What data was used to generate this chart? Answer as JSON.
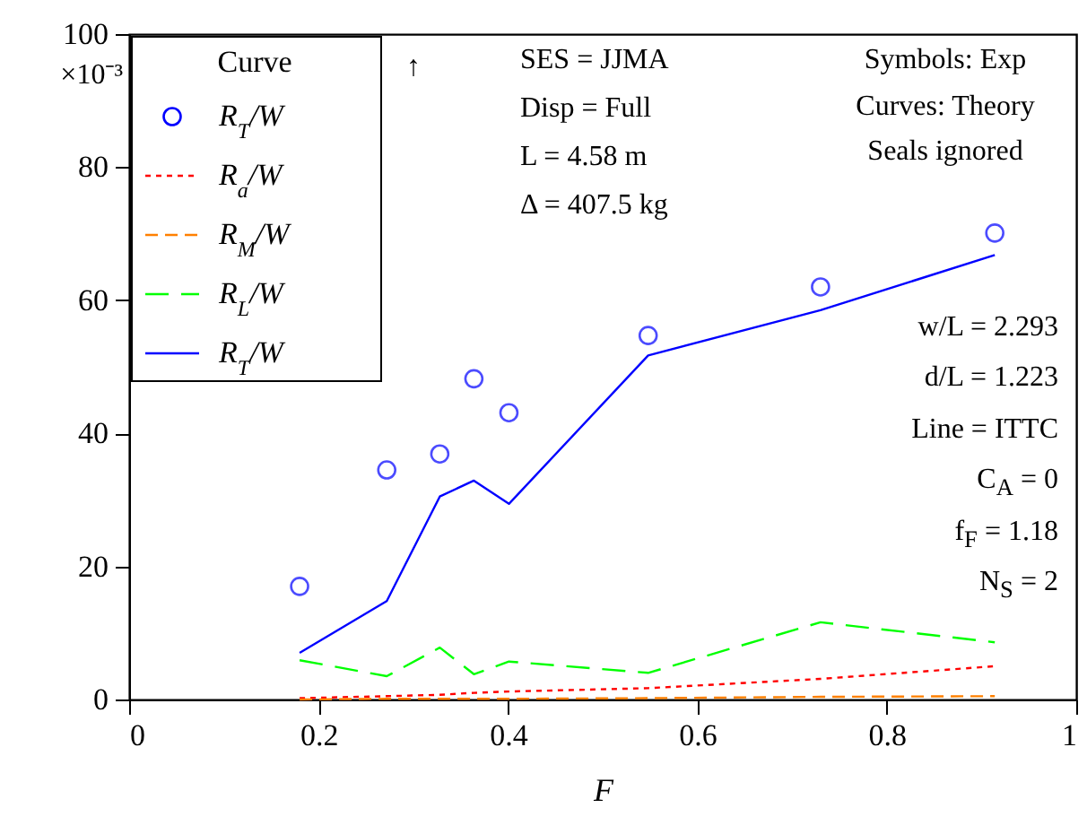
{
  "chart_data": {
    "type": "line",
    "xlabel": "F",
    "ylabel": "×10⁻³",
    "legend_title": "Curve",
    "legend": "top left",
    "annotations": [
      "↑",
      "SES = JJMA",
      "Disp = Full",
      "L = 4.58 m",
      "Δ = 407.5 kg",
      "Symbols: Exp",
      "Curves: Theory",
      "Seals ignored",
      "w/L = 2.293",
      "d/L = 1.223",
      "Line = ITTC",
      "C$_{A}$ = 0",
      "f$_{F}$ = 1.18",
      "N$_{S}$ = 2"
    ],
    "x": [
      0.18,
      0.272,
      0.328,
      0.364,
      0.401,
      0.548,
      0.73,
      0.914
    ],
    "series": [
      {
        "name": "R$_{T}$/W",
        "type": "scatter",
        "marker": "circle",
        "color": "#0000ff",
        "values": [
          17.0,
          34.5,
          36.9,
          48.2,
          43.1,
          54.7,
          62.0,
          70.1
        ]
      },
      {
        "name": "R$_{a}$/W",
        "line_style": "dashed",
        "color": "#ff0000",
        "values": [
          0.2,
          0.5,
          0.7,
          1.0,
          1.2,
          1.7,
          3.1,
          5.0
        ]
      },
      {
        "name": "R$_{M}$/W",
        "line_style": "dashed",
        "color": "#ff8000",
        "values": [
          0.0,
          0.1,
          0.1,
          0.1,
          0.1,
          0.2,
          0.4,
          0.5
        ]
      },
      {
        "name": "R$_{L}$/W",
        "line_style": "dashed",
        "color": "#00ff00",
        "values": [
          5.9,
          3.5,
          7.8,
          3.8,
          5.7,
          4.0,
          11.6,
          8.6
        ]
      },
      {
        "name": "R$_{T}$/W",
        "line_style": "solid",
        "color": "#0000ff",
        "values": [
          7.0,
          14.8,
          30.5,
          32.9,
          29.4,
          51.7,
          58.5,
          66.8
        ]
      }
    ],
    "xlim": [
      0,
      1
    ],
    "xticks": [
      0,
      0.2,
      0.4,
      0.6,
      0.8,
      1
    ],
    "ylim": [
      0,
      100
    ],
    "yticks": [
      0,
      20,
      40,
      60,
      80,
      100
    ],
    "grid": false
  }
}
